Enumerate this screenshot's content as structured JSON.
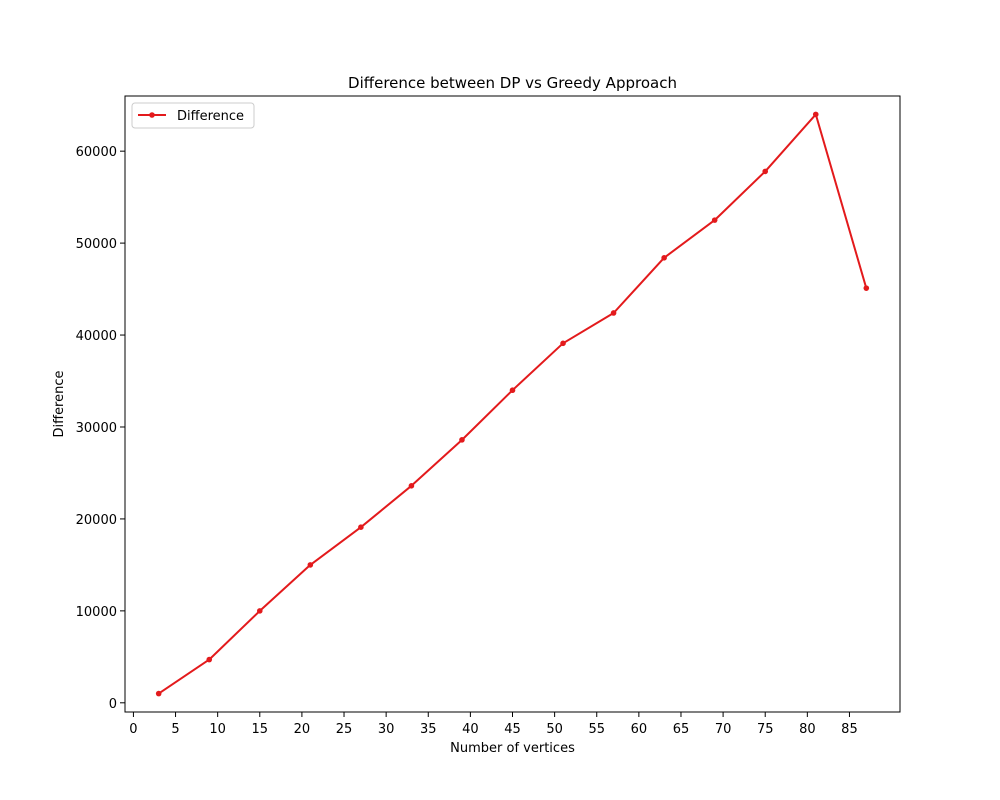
{
  "chart_data": {
    "type": "line",
    "title": "Difference between DP vs Greedy Approach",
    "xlabel": "Number of vertices",
    "ylabel": "Difference",
    "xlim": [
      -1,
      91
    ],
    "ylim": [
      -1000,
      66000
    ],
    "xticks": [
      0,
      5,
      10,
      15,
      20,
      25,
      30,
      35,
      40,
      45,
      50,
      55,
      60,
      65,
      70,
      75,
      80,
      85
    ],
    "yticks": [
      0,
      10000,
      20000,
      30000,
      40000,
      50000,
      60000
    ],
    "grid": false,
    "legend_position": "top-left",
    "series": [
      {
        "name": "Difference",
        "color": "#e31a1c",
        "marker": "circle",
        "x": [
          3,
          9,
          15,
          21,
          27,
          33,
          39,
          45,
          51,
          57,
          63,
          69,
          75,
          81,
          87
        ],
        "y": [
          1000,
          4700,
          10000,
          15000,
          19100,
          23600,
          28600,
          34000,
          39100,
          42400,
          48400,
          52500,
          57800,
          64000,
          45100
        ]
      }
    ]
  }
}
